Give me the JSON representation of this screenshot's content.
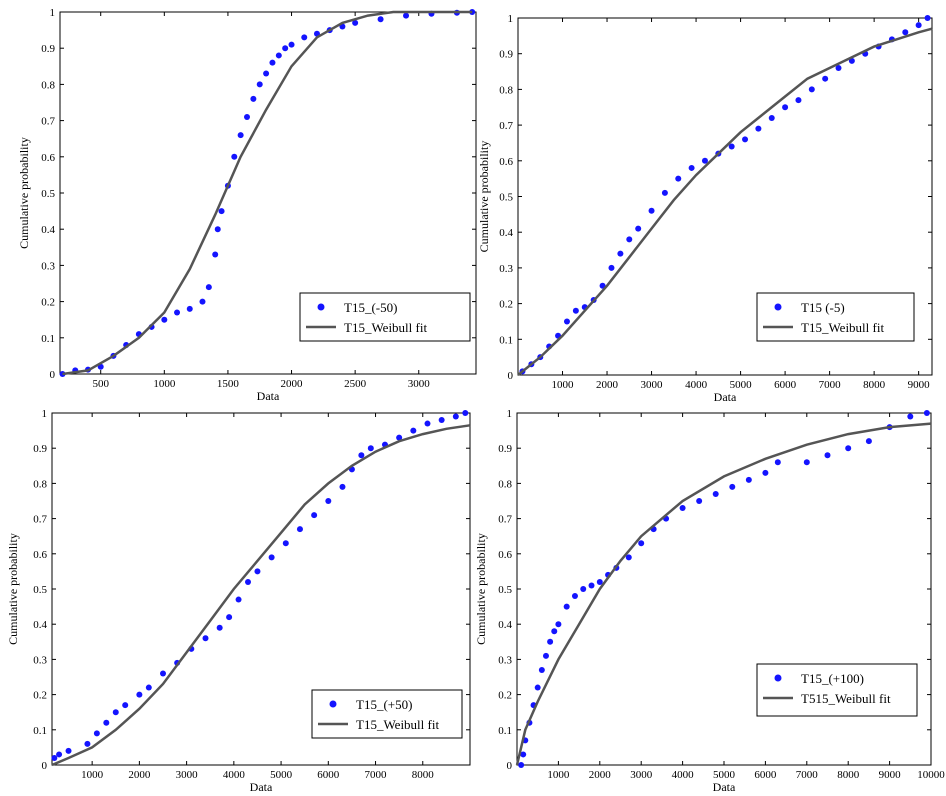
{
  "colors": {
    "empirical": "#1414ff",
    "fit": "#555555",
    "axis": "#000000"
  },
  "chart_data": [
    {
      "type": "scatter",
      "xlabel": "Data",
      "ylabel": "Cumulative probability",
      "xlim": [
        180,
        3450
      ],
      "ylim": [
        0,
        1
      ],
      "xticks": [
        500,
        1000,
        1500,
        2000,
        2500,
        3000
      ],
      "yticks": [
        0,
        0.1,
        0.2,
        0.3,
        0.4,
        0.5,
        0.6,
        0.7,
        0.8,
        0.9,
        1
      ],
      "legend_position": "bottom-right",
      "series": [
        {
          "name": "T15_(-50)",
          "kind": "points",
          "x": [
            200,
            300,
            400,
            500,
            600,
            700,
            800,
            900,
            1000,
            1100,
            1200,
            1300,
            1350,
            1400,
            1420,
            1450,
            1500,
            1550,
            1600,
            1650,
            1700,
            1750,
            1800,
            1850,
            1900,
            1950,
            2000,
            2100,
            2200,
            2300,
            2400,
            2500,
            2700,
            2900,
            3100,
            3300,
            3420
          ],
          "y": [
            0.0,
            0.01,
            0.012,
            0.02,
            0.05,
            0.08,
            0.11,
            0.13,
            0.15,
            0.17,
            0.18,
            0.2,
            0.24,
            0.33,
            0.4,
            0.45,
            0.52,
            0.6,
            0.66,
            0.71,
            0.76,
            0.8,
            0.83,
            0.86,
            0.88,
            0.9,
            0.91,
            0.93,
            0.94,
            0.95,
            0.96,
            0.97,
            0.98,
            0.99,
            0.995,
            0.998,
            1.0
          ]
        },
        {
          "name": "T15_Weibull fit",
          "kind": "line",
          "x": [
            200,
            400,
            600,
            800,
            1000,
            1200,
            1400,
            1500,
            1600,
            1800,
            2000,
            2200,
            2400,
            2600,
            2800,
            3000,
            3200,
            3420
          ],
          "y": [
            0.0,
            0.01,
            0.05,
            0.1,
            0.17,
            0.29,
            0.44,
            0.52,
            0.6,
            0.73,
            0.85,
            0.93,
            0.97,
            0.99,
            1.0,
            1.0,
            1.0,
            1.0
          ]
        }
      ]
    },
    {
      "type": "scatter",
      "xlabel": "Data",
      "ylabel": "Cumulative probability",
      "xlim": [
        0,
        9300
      ],
      "ylim": [
        0,
        1
      ],
      "xticks": [
        1000,
        2000,
        3000,
        4000,
        5000,
        6000,
        7000,
        8000,
        9000
      ],
      "yticks": [
        0,
        0.1,
        0.2,
        0.3,
        0.4,
        0.5,
        0.6,
        0.7,
        0.8,
        0.9,
        1
      ],
      "legend_position": "bottom-right",
      "series": [
        {
          "name": "T15 (-5)",
          "kind": "points",
          "x": [
            100,
            300,
            500,
            700,
            900,
            1100,
            1300,
            1500,
            1700,
            1900,
            2100,
            2300,
            2500,
            2700,
            3000,
            3300,
            3600,
            3900,
            4200,
            4500,
            4800,
            5100,
            5400,
            5700,
            6000,
            6300,
            6600,
            6900,
            7200,
            7500,
            7800,
            8100,
            8400,
            8700,
            9000,
            9200
          ],
          "y": [
            0.01,
            0.03,
            0.05,
            0.08,
            0.11,
            0.15,
            0.18,
            0.19,
            0.21,
            0.25,
            0.3,
            0.34,
            0.38,
            0.41,
            0.46,
            0.51,
            0.55,
            0.58,
            0.6,
            0.62,
            0.64,
            0.66,
            0.69,
            0.72,
            0.75,
            0.77,
            0.8,
            0.83,
            0.86,
            0.88,
            0.9,
            0.92,
            0.94,
            0.96,
            0.98,
            1.0
          ]
        },
        {
          "name": "T15_Weibull fit",
          "kind": "line",
          "x": [
            0,
            500,
            1000,
            1500,
            2000,
            2500,
            3000,
            3500,
            4000,
            4500,
            5000,
            5500,
            6000,
            6500,
            7000,
            7500,
            8000,
            8500,
            9000,
            9300
          ],
          "y": [
            0.0,
            0.05,
            0.11,
            0.18,
            0.25,
            0.33,
            0.41,
            0.49,
            0.56,
            0.62,
            0.68,
            0.73,
            0.78,
            0.83,
            0.86,
            0.89,
            0.92,
            0.94,
            0.96,
            0.97
          ]
        }
      ]
    },
    {
      "type": "scatter",
      "xlabel": "Data",
      "ylabel": "Cumulative probability",
      "xlim": [
        150,
        9000
      ],
      "ylim": [
        0,
        1
      ],
      "xticks": [
        1000,
        2000,
        3000,
        4000,
        5000,
        6000,
        7000,
        8000
      ],
      "yticks": [
        0,
        0.1,
        0.2,
        0.3,
        0.4,
        0.5,
        0.6,
        0.7,
        0.8,
        0.9,
        1
      ],
      "legend_position": "bottom-right",
      "series": [
        {
          "name": "T15_(+50)",
          "kind": "points",
          "x": [
            200,
            300,
            500,
            900,
            1100,
            1300,
            1500,
            1700,
            2000,
            2200,
            2500,
            2800,
            3100,
            3400,
            3700,
            3900,
            4100,
            4300,
            4500,
            4800,
            5100,
            5400,
            5700,
            6000,
            6300,
            6500,
            6700,
            6900,
            7200,
            7500,
            7800,
            8100,
            8400,
            8700,
            8900
          ],
          "y": [
            0.02,
            0.03,
            0.04,
            0.06,
            0.09,
            0.12,
            0.15,
            0.17,
            0.2,
            0.22,
            0.26,
            0.29,
            0.33,
            0.36,
            0.39,
            0.42,
            0.47,
            0.52,
            0.55,
            0.59,
            0.63,
            0.67,
            0.71,
            0.75,
            0.79,
            0.84,
            0.88,
            0.9,
            0.91,
            0.93,
            0.95,
            0.97,
            0.98,
            0.99,
            1.0
          ]
        },
        {
          "name": "T15_Weibull fit",
          "kind": "line",
          "x": [
            150,
            500,
            1000,
            1500,
            2000,
            2500,
            3000,
            3500,
            4000,
            4500,
            5000,
            5500,
            6000,
            6500,
            7000,
            7500,
            8000,
            8500,
            9000
          ],
          "y": [
            0.0,
            0.02,
            0.05,
            0.1,
            0.16,
            0.23,
            0.32,
            0.41,
            0.5,
            0.58,
            0.66,
            0.74,
            0.8,
            0.85,
            0.89,
            0.92,
            0.94,
            0.955,
            0.965
          ]
        }
      ]
    },
    {
      "type": "scatter",
      "xlabel": "Data",
      "ylabel": "Cumulative probability",
      "xlim": [
        0,
        10000
      ],
      "ylim": [
        0,
        1
      ],
      "xticks": [
        1000,
        2000,
        3000,
        4000,
        5000,
        6000,
        7000,
        8000,
        9000,
        10000
      ],
      "yticks": [
        0,
        0.1,
        0.2,
        0.3,
        0.4,
        0.5,
        0.6,
        0.7,
        0.8,
        0.9,
        1
      ],
      "legend_position": "bottom-right",
      "series": [
        {
          "name": "T15_(+100)",
          "kind": "points",
          "x": [
            100,
            150,
            200,
            300,
            400,
            500,
            600,
            700,
            800,
            900,
            1000,
            1200,
            1400,
            1600,
            1800,
            2000,
            2200,
            2400,
            2700,
            3000,
            3300,
            3600,
            4000,
            4400,
            4800,
            5200,
            5600,
            6000,
            6300,
            7000,
            7500,
            8000,
            8500,
            9000,
            9500,
            9900
          ],
          "y": [
            0.0,
            0.03,
            0.07,
            0.12,
            0.17,
            0.22,
            0.27,
            0.31,
            0.35,
            0.38,
            0.4,
            0.45,
            0.48,
            0.5,
            0.51,
            0.52,
            0.54,
            0.56,
            0.59,
            0.63,
            0.67,
            0.7,
            0.73,
            0.75,
            0.77,
            0.79,
            0.81,
            0.83,
            0.86,
            0.86,
            0.88,
            0.9,
            0.92,
            0.96,
            0.99,
            1.0
          ]
        },
        {
          "name": "T515_Weibull fit",
          "kind": "line",
          "x": [
            0,
            200,
            500,
            1000,
            1500,
            2000,
            2500,
            3000,
            4000,
            5000,
            6000,
            7000,
            8000,
            9000,
            10000
          ],
          "y": [
            0.0,
            0.1,
            0.18,
            0.3,
            0.4,
            0.5,
            0.58,
            0.65,
            0.75,
            0.82,
            0.87,
            0.91,
            0.94,
            0.96,
            0.97
          ]
        }
      ]
    }
  ]
}
